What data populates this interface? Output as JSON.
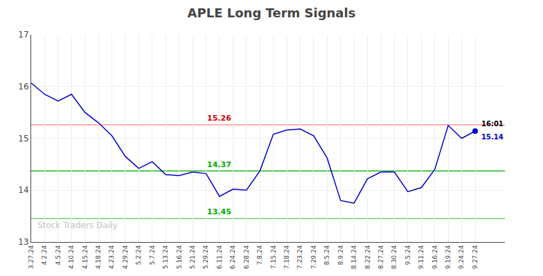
{
  "chart_data": {
    "type": "line",
    "title": "APLE Long Term Signals",
    "categories": [
      "3.27.24",
      "4.2.24",
      "4.5.24",
      "4.10.24",
      "4.15.24",
      "4.18.24",
      "4.23.24",
      "4.29.24",
      "5.2.24",
      "5.7.24",
      "5.13.24",
      "5.16.24",
      "5.21.24",
      "5.29.24",
      "6.11.24",
      "6.24.24",
      "6.28.24",
      "7.8.24",
      "7.15.24",
      "7.18.24",
      "7.23.24",
      "7.29.24",
      "8.5.24",
      "8.9.24",
      "8.14.24",
      "8.22.24",
      "8.27.24",
      "8.30.24",
      "9.5.24",
      "9.11.24",
      "9.16.24",
      "9.19.24",
      "9.24.24",
      "9.27.24"
    ],
    "values": [
      16.07,
      15.85,
      15.72,
      15.85,
      15.5,
      15.3,
      15.05,
      14.65,
      14.42,
      14.55,
      14.3,
      14.28,
      14.35,
      14.32,
      13.88,
      14.02,
      14.0,
      14.37,
      15.08,
      15.16,
      15.18,
      15.05,
      14.62,
      13.8,
      13.75,
      14.22,
      14.35,
      14.35,
      13.97,
      14.05,
      14.4,
      15.25,
      15.0,
      15.14
    ],
    "color": "#0000cc",
    "ylim": [
      13,
      17
    ],
    "yticks": [
      13,
      14,
      15,
      16,
      17
    ],
    "grid": true,
    "hlines": [
      {
        "value": 15.26,
        "label": "15.26",
        "color": "#ff8888",
        "label_color": "#cc0000"
      },
      {
        "value": 14.37,
        "label": "14.37",
        "color": "#00aa00",
        "label_color": "#00aa00"
      },
      {
        "value": 13.45,
        "label": "13.45",
        "color": "#66cc66",
        "label_color": "#00aa00"
      }
    ],
    "last_label": {
      "time": "16:01",
      "price": "15.14"
    },
    "watermark": "Stock Traders Daily"
  }
}
